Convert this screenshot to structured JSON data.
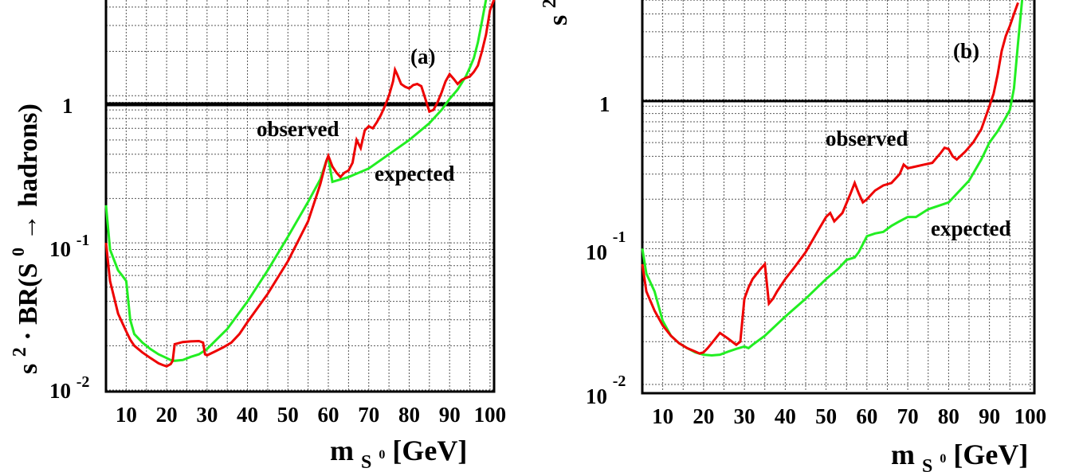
{
  "colors": {
    "observed": "#ee0000",
    "expected": "#22ee22",
    "reference_line": "#000000",
    "grid": "#555555"
  },
  "panel_a": {
    "tag": "(a)",
    "y_title_prefix": "s",
    "y_title_sup": "2",
    "y_title_main": "· BR(S",
    "y_title_sup0": "0",
    "y_title_arrow": "→",
    "y_title_end": "hadrons)",
    "x_title_m": "m",
    "x_title_sub": "S",
    "x_title_sub0": "0",
    "x_title_unit": "[GeV]",
    "label_observed": "observed",
    "label_expected": "expected",
    "y_ticks": [
      {
        "base": "1",
        "exp": ""
      },
      {
        "base": "10",
        "exp": "-1"
      },
      {
        "base": "10",
        "exp": "-2"
      }
    ],
    "x_ticks": [
      "10",
      "20",
      "30",
      "40",
      "50",
      "60",
      "70",
      "80",
      "90",
      "100"
    ]
  },
  "panel_b": {
    "tag": "(b)",
    "y_title_prefix": "s",
    "y_title_sup": "2",
    "x_title_m": "m",
    "x_title_sub": "S",
    "x_title_sub0": "0",
    "x_title_unit": "[GeV]",
    "label_observed": "observed",
    "label_expected": "expected",
    "y_ticks": [
      {
        "base": "1",
        "exp": ""
      },
      {
        "base": "10",
        "exp": "-1"
      },
      {
        "base": "10",
        "exp": "-2"
      }
    ],
    "x_ticks": [
      "10",
      "20",
      "30",
      "40",
      "50",
      "60",
      "70",
      "80",
      "90",
      "100"
    ]
  },
  "chart_data": [
    {
      "type": "line",
      "panel": "(a)",
      "xlabel": "m_S0 [GeV]",
      "ylabel": "s2 · BR(S0 → hadrons)",
      "xlim": [
        5,
        102
      ],
      "ylim_log10": [
        -2.0,
        0.65
      ],
      "yscale": "log",
      "grid": true,
      "reference_line_y": 1,
      "series": [
        {
          "name": "observed",
          "x": [
            5,
            6,
            8,
            10,
            11,
            12,
            14,
            16,
            18,
            19,
            20,
            21,
            21.5,
            22,
            24,
            26,
            28,
            29,
            29.5,
            30,
            32,
            34,
            36,
            38,
            40,
            45,
            50,
            55,
            58,
            59.5,
            60,
            61,
            62,
            63,
            64,
            65,
            66,
            66.5,
            67,
            68,
            69,
            70,
            71,
            72,
            73,
            74,
            75,
            76,
            76.5,
            77,
            78,
            79,
            80,
            81,
            82,
            83,
            84,
            85,
            86,
            87,
            88,
            89,
            90,
            91,
            92,
            93,
            94,
            95,
            96,
            97,
            98,
            99,
            100,
            101
          ],
          "y": [
            0.1,
            0.055,
            0.033,
            0.025,
            0.022,
            0.02,
            0.018,
            0.0165,
            0.0152,
            0.0148,
            0.0145,
            0.015,
            0.0158,
            0.0205,
            0.0212,
            0.0214,
            0.0215,
            0.021,
            0.0175,
            0.0172,
            0.0183,
            0.0195,
            0.021,
            0.024,
            0.029,
            0.045,
            0.075,
            0.14,
            0.25,
            0.36,
            0.39,
            0.33,
            0.3,
            0.28,
            0.3,
            0.31,
            0.35,
            0.42,
            0.5,
            0.44,
            0.58,
            0.62,
            0.6,
            0.66,
            0.74,
            0.85,
            1.0,
            1.25,
            1.5,
            1.4,
            1.2,
            1.15,
            1.12,
            1.18,
            1.2,
            1.16,
            0.95,
            0.78,
            0.8,
            0.9,
            1.05,
            1.25,
            1.4,
            1.3,
            1.2,
            1.28,
            1.32,
            1.35,
            1.45,
            1.6,
            2.0,
            2.6,
            3.8,
            4.5
          ]
        },
        {
          "name": "expected",
          "x": [
            5,
            6,
            8,
            9,
            10,
            11,
            12,
            14,
            16,
            18,
            20,
            21,
            22,
            24,
            26,
            28,
            30,
            35,
            40,
            45,
            50,
            55,
            58,
            59.5,
            60,
            61,
            65,
            70,
            75,
            80,
            85,
            88,
            90,
            92,
            94,
            95,
            96,
            97,
            98,
            99
          ],
          "y": [
            0.18,
            0.09,
            0.065,
            0.06,
            0.055,
            0.03,
            0.024,
            0.021,
            0.019,
            0.0175,
            0.0165,
            0.016,
            0.0158,
            0.016,
            0.0168,
            0.0175,
            0.019,
            0.026,
            0.04,
            0.065,
            0.11,
            0.19,
            0.27,
            0.36,
            0.38,
            0.26,
            0.28,
            0.32,
            0.4,
            0.5,
            0.65,
            0.8,
            0.95,
            1.1,
            1.35,
            1.55,
            1.8,
            2.3,
            3.2,
            4.5
          ]
        }
      ]
    },
    {
      "type": "line",
      "panel": "(b)",
      "xlabel": "m_S0 [GeV]",
      "ylabel": "s2",
      "xlim": [
        5,
        102
      ],
      "ylim_log10": [
        -2.05,
        0.7
      ],
      "yscale": "log",
      "grid": true,
      "reference_line_y": 1,
      "series": [
        {
          "name": "observed",
          "x": [
            5,
            6,
            8,
            10,
            12,
            14,
            16,
            18,
            19,
            20,
            21,
            22,
            24,
            26,
            28,
            29,
            30,
            31,
            32,
            34,
            35,
            36,
            37,
            38,
            40,
            42,
            45,
            48,
            50,
            51,
            52,
            54,
            56,
            57,
            58,
            59,
            60,
            62,
            64,
            66,
            68,
            69,
            70,
            72,
            74,
            76,
            78,
            79,
            80,
            81,
            82,
            84,
            86,
            88,
            90,
            91,
            92,
            93,
            94,
            95,
            96,
            97
          ],
          "y": [
            0.07,
            0.045,
            0.033,
            0.026,
            0.022,
            0.0195,
            0.018,
            0.017,
            0.0165,
            0.0168,
            0.018,
            0.0195,
            0.023,
            0.021,
            0.019,
            0.02,
            0.04,
            0.048,
            0.055,
            0.065,
            0.07,
            0.037,
            0.04,
            0.045,
            0.055,
            0.065,
            0.085,
            0.12,
            0.15,
            0.16,
            0.14,
            0.16,
            0.22,
            0.26,
            0.22,
            0.19,
            0.2,
            0.23,
            0.25,
            0.26,
            0.3,
            0.35,
            0.33,
            0.34,
            0.35,
            0.36,
            0.42,
            0.46,
            0.45,
            0.4,
            0.38,
            0.43,
            0.5,
            0.62,
            0.9,
            1.1,
            1.5,
            2.2,
            2.8,
            3.3,
            4.0,
            4.8
          ]
        },
        {
          "name": "expected",
          "x": [
            5,
            6,
            8,
            10,
            12,
            14,
            16,
            18,
            20,
            22,
            24,
            26,
            28,
            30,
            31,
            32,
            35,
            40,
            45,
            50,
            53,
            55,
            57,
            58,
            60,
            62,
            64,
            66,
            68,
            70,
            72,
            75,
            80,
            85,
            88,
            90,
            92,
            94,
            95,
            96,
            97,
            98
          ],
          "y": [
            0.09,
            0.06,
            0.045,
            0.028,
            0.022,
            0.0195,
            0.018,
            0.0168,
            0.0162,
            0.016,
            0.0162,
            0.017,
            0.0178,
            0.0185,
            0.018,
            0.019,
            0.022,
            0.03,
            0.04,
            0.055,
            0.065,
            0.075,
            0.078,
            0.085,
            0.11,
            0.115,
            0.118,
            0.13,
            0.14,
            0.15,
            0.15,
            0.17,
            0.19,
            0.27,
            0.38,
            0.5,
            0.6,
            0.75,
            0.85,
            1.2,
            2.5,
            5.0
          ]
        }
      ]
    }
  ]
}
